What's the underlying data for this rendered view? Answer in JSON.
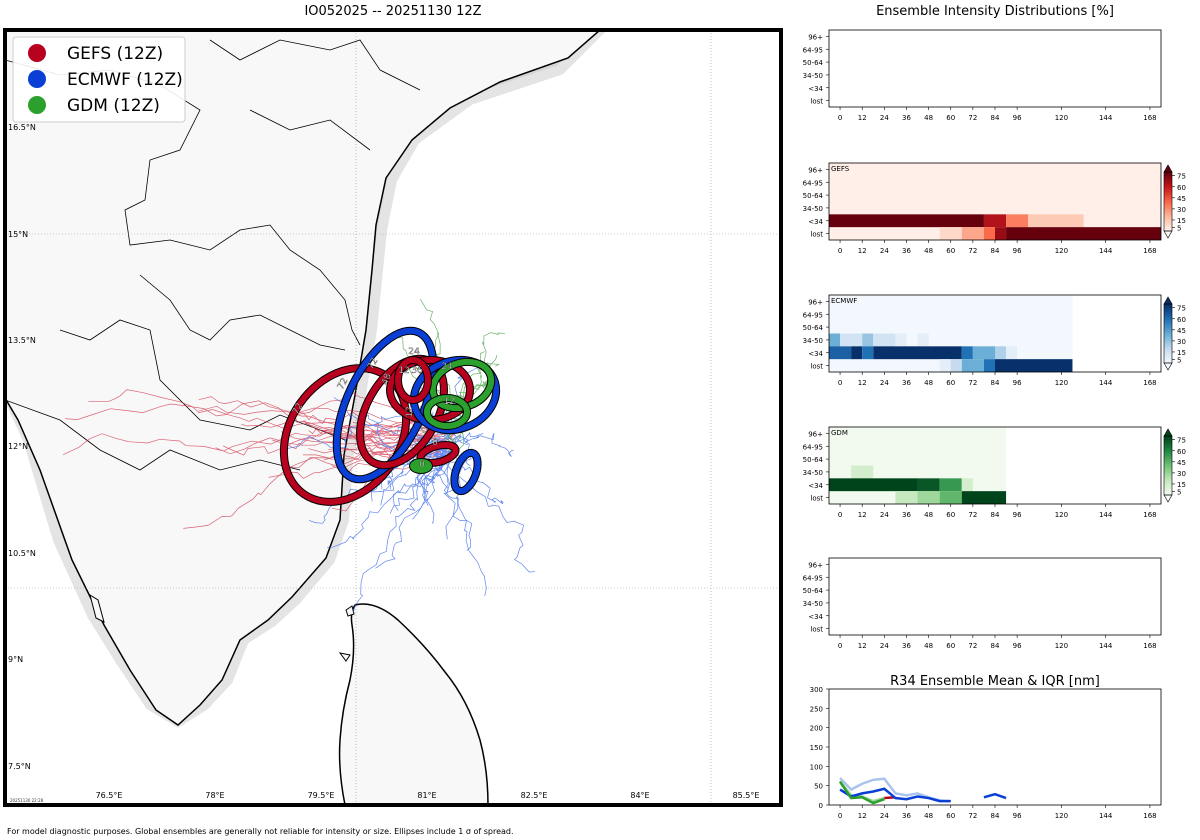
{
  "map_panel": {
    "title": "IO052025 -- 20251130 12Z",
    "legend": [
      {
        "label": "GEFS (12Z)",
        "color": "#b8001f"
      },
      {
        "label": "ECMWF (12Z)",
        "color": "#0a3fd6"
      },
      {
        "label": "GDM (12Z)",
        "color": "#2ca02c"
      }
    ],
    "lat_labels": [
      "16.5°N",
      "15°N",
      "13.5°N",
      "12°N",
      "10.5°N",
      "9°N",
      "7.5°N"
    ],
    "lon_labels": [
      "76.5°E",
      "78°E",
      "79.5°E",
      "81°E",
      "82.5°E",
      "84°E",
      "85.5°E"
    ],
    "ellipse_labels": [
      "72",
      "72",
      "72",
      "48",
      "36",
      "24",
      "24",
      "12",
      "12",
      "12",
      "0",
      "0"
    ],
    "stamp": "20251130 22:28"
  },
  "footer_note": "For model diagnostic purposes. Global ensembles are generally not reliable for intensity or size. Ellipses include 1 σ of spread.",
  "chart_data": [
    {
      "type": "heatmap",
      "title": "Ensemble Intensity Distributions [%]",
      "model": "",
      "y_categories": [
        "96+",
        "64-95",
        "50-64",
        "34-50",
        "<34",
        "lost"
      ],
      "x_ticks": [
        0,
        12,
        24,
        36,
        48,
        60,
        72,
        84,
        96,
        120,
        144,
        168
      ],
      "x_range": [
        -6,
        174
      ],
      "cells": []
    },
    {
      "type": "heatmap",
      "model": "GEFS",
      "y_categories": [
        "96+",
        "64-95",
        "50-64",
        "34-50",
        "<34",
        "lost"
      ],
      "x_ticks": [
        0,
        12,
        24,
        36,
        48,
        60,
        72,
        84,
        96,
        120,
        144,
        168
      ],
      "x_range": [
        -6,
        174
      ],
      "colorbar_ticks": [
        5,
        15,
        30,
        45,
        60,
        75
      ],
      "colormap": "Reds",
      "background_value": 2,
      "cells": [
        {
          "x0": -6,
          "x1": 78,
          "row": "<34",
          "value": 95
        },
        {
          "x0": 78,
          "x1": 90,
          "row": "<34",
          "value": 65
        },
        {
          "x0": 90,
          "x1": 102,
          "row": "<34",
          "value": 35
        },
        {
          "x0": 102,
          "x1": 132,
          "row": "<34",
          "value": 15
        },
        {
          "x0": 54,
          "x1": 66,
          "row": "lost",
          "value": 10
        },
        {
          "x0": 66,
          "x1": 78,
          "row": "lost",
          "value": 25
        },
        {
          "x0": 78,
          "x1": 84,
          "row": "lost",
          "value": 40
        },
        {
          "x0": 84,
          "x1": 90,
          "row": "lost",
          "value": 70
        },
        {
          "x0": 90,
          "x1": 174,
          "row": "lost",
          "value": 95
        }
      ]
    },
    {
      "type": "heatmap",
      "model": "ECMWF",
      "y_categories": [
        "96+",
        "64-95",
        "50-64",
        "34-50",
        "<34",
        "lost"
      ],
      "x_ticks": [
        0,
        12,
        24,
        36,
        48,
        60,
        72,
        84,
        96,
        120,
        144,
        168
      ],
      "x_range": [
        -6,
        174
      ],
      "colorbar_ticks": [
        5,
        15,
        30,
        45,
        60,
        75
      ],
      "colormap": "Blues",
      "background_value": 2,
      "background_x_end": 126,
      "cells": [
        {
          "x0": -6,
          "x1": 0,
          "row": "34-50",
          "value": 40
        },
        {
          "x0": 0,
          "x1": 12,
          "row": "34-50",
          "value": 15
        },
        {
          "x0": 12,
          "x1": 18,
          "row": "34-50",
          "value": 30
        },
        {
          "x0": 18,
          "x1": 30,
          "row": "34-50",
          "value": 15
        },
        {
          "x0": 30,
          "x1": 36,
          "row": "34-50",
          "value": 8
        },
        {
          "x0": 42,
          "x1": 48,
          "row": "34-50",
          "value": 8
        },
        {
          "x0": -6,
          "x1": 6,
          "row": "<34",
          "value": 65
        },
        {
          "x0": 6,
          "x1": 12,
          "row": "<34",
          "value": 90
        },
        {
          "x0": 12,
          "x1": 18,
          "row": "<34",
          "value": 60
        },
        {
          "x0": 18,
          "x1": 66,
          "row": "<34",
          "value": 90
        },
        {
          "x0": 66,
          "x1": 72,
          "row": "<34",
          "value": 60
        },
        {
          "x0": 72,
          "x1": 84,
          "row": "<34",
          "value": 40
        },
        {
          "x0": 84,
          "x1": 90,
          "row": "<34",
          "value": 25
        },
        {
          "x0": 90,
          "x1": 96,
          "row": "<34",
          "value": 8
        },
        {
          "x0": 54,
          "x1": 60,
          "row": "lost",
          "value": 8
        },
        {
          "x0": 60,
          "x1": 66,
          "row": "lost",
          "value": 20
        },
        {
          "x0": 66,
          "x1": 78,
          "row": "lost",
          "value": 40
        },
        {
          "x0": 78,
          "x1": 84,
          "row": "lost",
          "value": 60
        },
        {
          "x0": 84,
          "x1": 126,
          "row": "lost",
          "value": 95
        }
      ]
    },
    {
      "type": "heatmap",
      "model": "GDM",
      "y_categories": [
        "96+",
        "64-95",
        "50-64",
        "34-50",
        "<34",
        "lost"
      ],
      "x_ticks": [
        0,
        12,
        24,
        36,
        48,
        60,
        72,
        84,
        96,
        120,
        144,
        168
      ],
      "x_range": [
        -6,
        174
      ],
      "colorbar_ticks": [
        5,
        15,
        30,
        45,
        60,
        75
      ],
      "colormap": "Greens",
      "background_value": 2,
      "background_x_end": 90,
      "cells": [
        {
          "x0": 6,
          "x1": 18,
          "row": "34-50",
          "value": 15
        },
        {
          "x0": -6,
          "x1": 42,
          "row": "<34",
          "value": 95
        },
        {
          "x0": 42,
          "x1": 54,
          "row": "<34",
          "value": 75
        },
        {
          "x0": 54,
          "x1": 66,
          "row": "<34",
          "value": 55
        },
        {
          "x0": 66,
          "x1": 72,
          "row": "<34",
          "value": 15
        },
        {
          "x0": 30,
          "x1": 42,
          "row": "lost",
          "value": 20
        },
        {
          "x0": 42,
          "x1": 54,
          "row": "lost",
          "value": 30
        },
        {
          "x0": 54,
          "x1": 66,
          "row": "lost",
          "value": 45
        },
        {
          "x0": 66,
          "x1": 90,
          "row": "lost",
          "value": 95
        }
      ]
    },
    {
      "type": "heatmap",
      "model": "",
      "y_categories": [
        "96+",
        "64-95",
        "50-64",
        "34-50",
        "<34",
        "lost"
      ],
      "x_ticks": [
        0,
        12,
        24,
        36,
        48,
        60,
        72,
        84,
        96,
        120,
        144,
        168
      ],
      "x_range": [
        -6,
        174
      ],
      "cells": []
    },
    {
      "type": "line",
      "title": "R34 Ensemble Mean & IQR [nm]",
      "x_ticks": [
        0,
        12,
        24,
        36,
        48,
        60,
        72,
        84,
        96,
        120,
        144,
        168
      ],
      "y_ticks": [
        0,
        50,
        100,
        150,
        200,
        250,
        300
      ],
      "xlim": [
        -6,
        174
      ],
      "ylim": [
        0,
        300
      ],
      "series": [
        {
          "name": "GEFS",
          "color": "#b8001f",
          "x": [
            24,
            30
          ],
          "values": [
            18,
            20
          ]
        },
        {
          "name": "ECMWF",
          "color": "#0a3fd6",
          "x": [
            0,
            6,
            12,
            18,
            24,
            30,
            36,
            42,
            48,
            54,
            60
          ],
          "values": [
            40,
            22,
            30,
            35,
            42,
            18,
            15,
            22,
            18,
            10,
            10
          ]
        },
        {
          "name": "ECMWF",
          "color": "#0a3fd6",
          "x": [
            78,
            84,
            90
          ],
          "values": [
            20,
            28,
            18
          ]
        },
        {
          "name": "ECMWF IQR",
          "color": "#a9c4ee",
          "x": [
            0,
            6,
            12,
            18,
            24,
            30,
            36,
            42,
            48,
            54,
            60
          ],
          "values": [
            70,
            40,
            55,
            65,
            68,
            30,
            25,
            30,
            20,
            12,
            10
          ]
        },
        {
          "name": "GDM",
          "color": "#2ca02c",
          "x": [
            0,
            6,
            12,
            18,
            24
          ],
          "values": [
            60,
            18,
            20,
            5,
            15
          ]
        },
        {
          "name": "GDM IQR",
          "color": "#9ad39a",
          "x": [
            0,
            6,
            12,
            18,
            24
          ],
          "values": [
            62,
            25,
            22,
            10,
            18
          ]
        }
      ]
    }
  ]
}
